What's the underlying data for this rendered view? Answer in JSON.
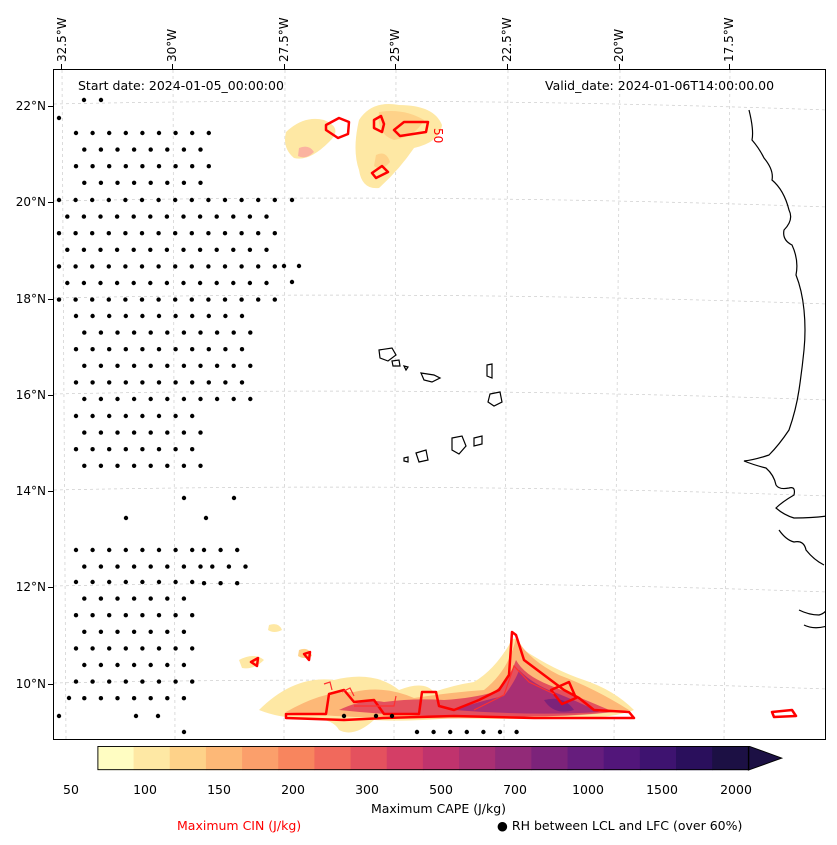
{
  "map": {
    "lon_labels": [
      "32.5°W",
      "30°W",
      "27.5°W",
      "25°W",
      "22.5°W",
      "20°W",
      "17.5°W"
    ],
    "lat_labels": [
      "22°N",
      "20°N",
      "18°N",
      "16°N",
      "14°N",
      "12°N",
      "10°N"
    ],
    "start_date": "Start date: 2024-01-05_00:00:00",
    "valid_date": "Valid_date: 2024-01-06T14:00:00.00",
    "contour_label": "50"
  },
  "colorbar": {
    "title": "Maximum CAPE (J/kg)",
    "ticks": [
      "50",
      "100",
      "150",
      "200",
      "300",
      "500",
      "700",
      "1000",
      "1500",
      "2000"
    ],
    "colors": [
      "#fffdc2",
      "#fee8a4",
      "#fed289",
      "#fdb877",
      "#fb9f6b",
      "#f8855e",
      "#f1695c",
      "#e4515e",
      "#d43e66",
      "#c0336d",
      "#a92f73",
      "#922a78",
      "#7c237a",
      "#661d7d",
      "#52167a",
      "#3e1370",
      "#2a0f5c",
      "#1c1044"
    ]
  },
  "legend": {
    "cin_label": "Maximum CIN (J/kg)",
    "cin_color": "#ff0000",
    "rh_label": "RH between LCL and LFC (over 60%)",
    "rh_marker": "●"
  }
}
